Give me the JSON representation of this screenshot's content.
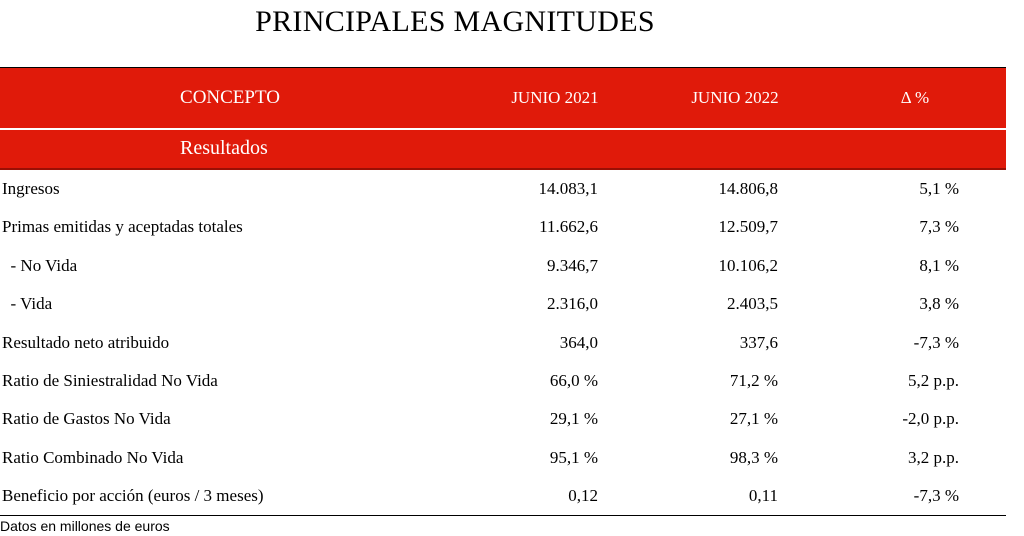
{
  "title": "PRINCIPALES MAGNITUDES",
  "header": {
    "concept": "CONCEPTO",
    "col_2021": "JUNIO 2021",
    "col_2022": "JUNIO 2022",
    "col_delta": "Δ %"
  },
  "section": {
    "label": "Resultados"
  },
  "colors": {
    "header_bg": "#e01a0a",
    "header_text": "#ffffff"
  },
  "rows": [
    {
      "label": "Ingresos",
      "v2021": "14.083,1",
      "v2022": "14.806,8",
      "delta": "5,1 %"
    },
    {
      "label": "Primas emitidas y aceptadas totales",
      "v2021": "11.662,6",
      "v2022": "12.509,7",
      "delta": "7,3 %"
    },
    {
      "label": "  - No Vida",
      "v2021": "9.346,7",
      "v2022": "10.106,2",
      "delta": "8,1 %"
    },
    {
      "label": "  - Vida",
      "v2021": "2.316,0",
      "v2022": "2.403,5",
      "delta": "3,8 %"
    },
    {
      "label": "Resultado neto atribuido",
      "v2021": "364,0",
      "v2022": "337,6",
      "delta": "-7,3 %"
    },
    {
      "label": "Ratio de Siniestralidad No Vida",
      "v2021": "66,0 %",
      "v2022": "71,2 %",
      "delta": "5,2 p.p."
    },
    {
      "label": "Ratio de Gastos No Vida",
      "v2021": "29,1 %",
      "v2022": "27,1 %",
      "delta": "-2,0 p.p."
    },
    {
      "label": "Ratio Combinado No Vida",
      "v2021": "95,1 %",
      "v2022": "98,3 %",
      "delta": "3,2 p.p."
    },
    {
      "label": "Beneficio por acción (euros / 3 meses)",
      "v2021": "0,12",
      "v2022": "0,11",
      "delta": "-7,3 %"
    }
  ],
  "footnote": "Datos en millones de euros"
}
